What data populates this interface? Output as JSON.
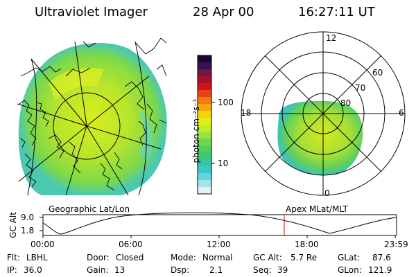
{
  "header": {
    "instrument": "Ultraviolet Imager",
    "date": "28 Apr 00",
    "time": "16:27:11 UT"
  },
  "colorbar": {
    "unit_label": "photon cm⁻²s⁻¹",
    "ticks": [
      "100",
      "10"
    ],
    "colors": [
      "#1a0633",
      "#3a1050",
      "#6e1845",
      "#a3102a",
      "#d0141a",
      "#e8421a",
      "#f57a12",
      "#f5a70e",
      "#f5d20a",
      "#e6ef15",
      "#c2ed2c",
      "#96e43d",
      "#6fd84a",
      "#4ecf5e",
      "#3ec879",
      "#34c7a0",
      "#3ac7c6",
      "#66d3dc",
      "#a5e3ea",
      "#e3f2f6"
    ]
  },
  "left_panel": {
    "caption": "Geographic Lat/Lon"
  },
  "right_panel": {
    "caption": "Apex MLat/MLT",
    "mlt_labels": {
      "top": "12",
      "left": "18",
      "right": "6",
      "bottom": "0"
    },
    "lat_labels": [
      "60",
      "70",
      "80"
    ]
  },
  "orbit_plot": {
    "ylabel": "GC Alt",
    "yticks": [
      "9.0",
      "1.8"
    ],
    "xticks": [
      "00:00",
      "06:00",
      "12:00",
      "18:00",
      "23:59"
    ],
    "marker_time": "16:27"
  },
  "info_grid": [
    [
      {
        "label": "Flt:",
        "value": "LBHL"
      },
      {
        "label": "Door:",
        "value": "Closed"
      },
      {
        "label": "Mode:",
        "value": "Normal"
      },
      {
        "label": "GC Alt:",
        "value": "5.7 Re"
      },
      {
        "label": "GLat:",
        "value": "87.6"
      }
    ],
    [
      {
        "label": "IP:",
        "value": "36.0"
      },
      {
        "label": "Gain:",
        "value": "13"
      },
      {
        "label": "Dsp:",
        "value": "2.1"
      },
      {
        "label": "Seq:",
        "value": "39"
      },
      {
        "label": "GLon:",
        "value": "121.9"
      }
    ]
  ]
}
